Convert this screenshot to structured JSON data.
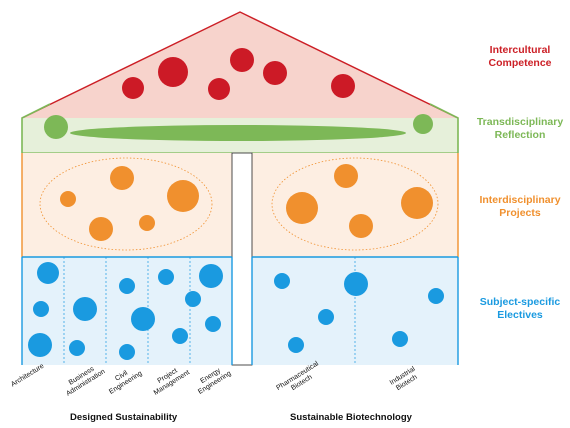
{
  "layers": [
    {
      "id": "roof",
      "label": "Intercultural\nCompetence",
      "color": "#cc1f26"
    },
    {
      "id": "beam",
      "label": "Transdisciplinary\nReflection",
      "color": "#7db857"
    },
    {
      "id": "projects",
      "label": "Interdisciplinary\nProjects",
      "color": "#f0902e"
    },
    {
      "id": "electives",
      "label": "Subject-specific\nElectives",
      "color": "#1a9ae0"
    }
  ],
  "columns_left": [
    "Architecture",
    "Business\nAdministration",
    "Civil\nEngineering",
    "Project\nManagement",
    "Energy\nEngineering"
  ],
  "columns_right": [
    "Pharmaceutical\nBiotech",
    "Industrial\nBiotech"
  ],
  "groups": {
    "left": "Designed Sustainability",
    "right": "Sustainable Biotechnology"
  }
}
